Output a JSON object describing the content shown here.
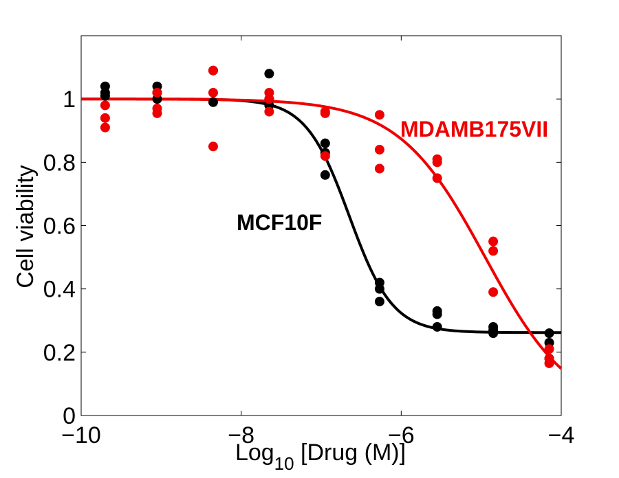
{
  "chart_data": {
    "type": "scatter",
    "xlabel_prefix": "Log",
    "xlabel_subscript": "10",
    "xlabel_suffix": " [Drug (M)]",
    "ylabel": "Cell viability",
    "xlim": [
      -10,
      -4
    ],
    "ylim": [
      0,
      1.2
    ],
    "x_ticks": [
      -10,
      -8,
      -6,
      -4
    ],
    "x_tick_labels": [
      "−10",
      "−8",
      "−6",
      "−4"
    ],
    "y_ticks": [
      0,
      0.2,
      0.4,
      0.6,
      0.8,
      1
    ],
    "y_tick_labels": [
      "0",
      "0.2",
      "0.4",
      "0.6",
      "0.8",
      "1"
    ],
    "grid": false,
    "series": [
      {
        "name": "MCF10F",
        "color": "#000000",
        "fit": {
          "top": 1.0,
          "bottom": 0.262,
          "logIC50": -6.65,
          "hill": 1.6
        },
        "points": [
          [
            -9.7,
            1.04
          ],
          [
            -9.7,
            1.02
          ],
          [
            -9.7,
            1.01
          ],
          [
            -9.05,
            1.04
          ],
          [
            -9.05,
            1.02
          ],
          [
            -9.05,
            1.0
          ],
          [
            -8.35,
            1.09
          ],
          [
            -8.35,
            0.99
          ],
          [
            -7.65,
            1.08
          ],
          [
            -7.65,
            1.0
          ],
          [
            -7.65,
            0.98
          ],
          [
            -6.95,
            0.86
          ],
          [
            -6.95,
            0.83
          ],
          [
            -6.95,
            0.76
          ],
          [
            -6.27,
            0.42
          ],
          [
            -6.27,
            0.4
          ],
          [
            -6.27,
            0.36
          ],
          [
            -5.55,
            0.33
          ],
          [
            -5.55,
            0.32
          ],
          [
            -5.55,
            0.28
          ],
          [
            -4.85,
            0.28
          ],
          [
            -4.85,
            0.27
          ],
          [
            -4.85,
            0.26
          ],
          [
            -4.15,
            0.26
          ],
          [
            -4.15,
            0.23
          ],
          [
            -4.15,
            0.18
          ]
        ]
      },
      {
        "name": "MDAMB175VII",
        "color": "#ee0000",
        "fit": {
          "top": 1.0,
          "bottom": 0.0,
          "logIC50": -4.95,
          "hill": 0.8
        },
        "points": [
          [
            -9.7,
            0.98
          ],
          [
            -9.7,
            0.94
          ],
          [
            -9.7,
            0.91
          ],
          [
            -9.05,
            1.02
          ],
          [
            -9.05,
            0.97
          ],
          [
            -9.05,
            0.955
          ],
          [
            -8.35,
            1.09
          ],
          [
            -8.35,
            1.02
          ],
          [
            -8.35,
            0.85
          ],
          [
            -7.65,
            1.02
          ],
          [
            -7.65,
            1.0
          ],
          [
            -7.65,
            0.96
          ],
          [
            -6.95,
            0.96
          ],
          [
            -6.95,
            0.955
          ],
          [
            -6.95,
            0.82
          ],
          [
            -6.27,
            0.95
          ],
          [
            -6.27,
            0.84
          ],
          [
            -6.27,
            0.78
          ],
          [
            -5.55,
            0.81
          ],
          [
            -5.55,
            0.8
          ],
          [
            -5.55,
            0.75
          ],
          [
            -4.85,
            0.55
          ],
          [
            -4.85,
            0.52
          ],
          [
            -4.85,
            0.39
          ],
          [
            -4.15,
            0.21
          ],
          [
            -4.15,
            0.18
          ],
          [
            -4.15,
            0.165
          ]
        ]
      }
    ]
  }
}
